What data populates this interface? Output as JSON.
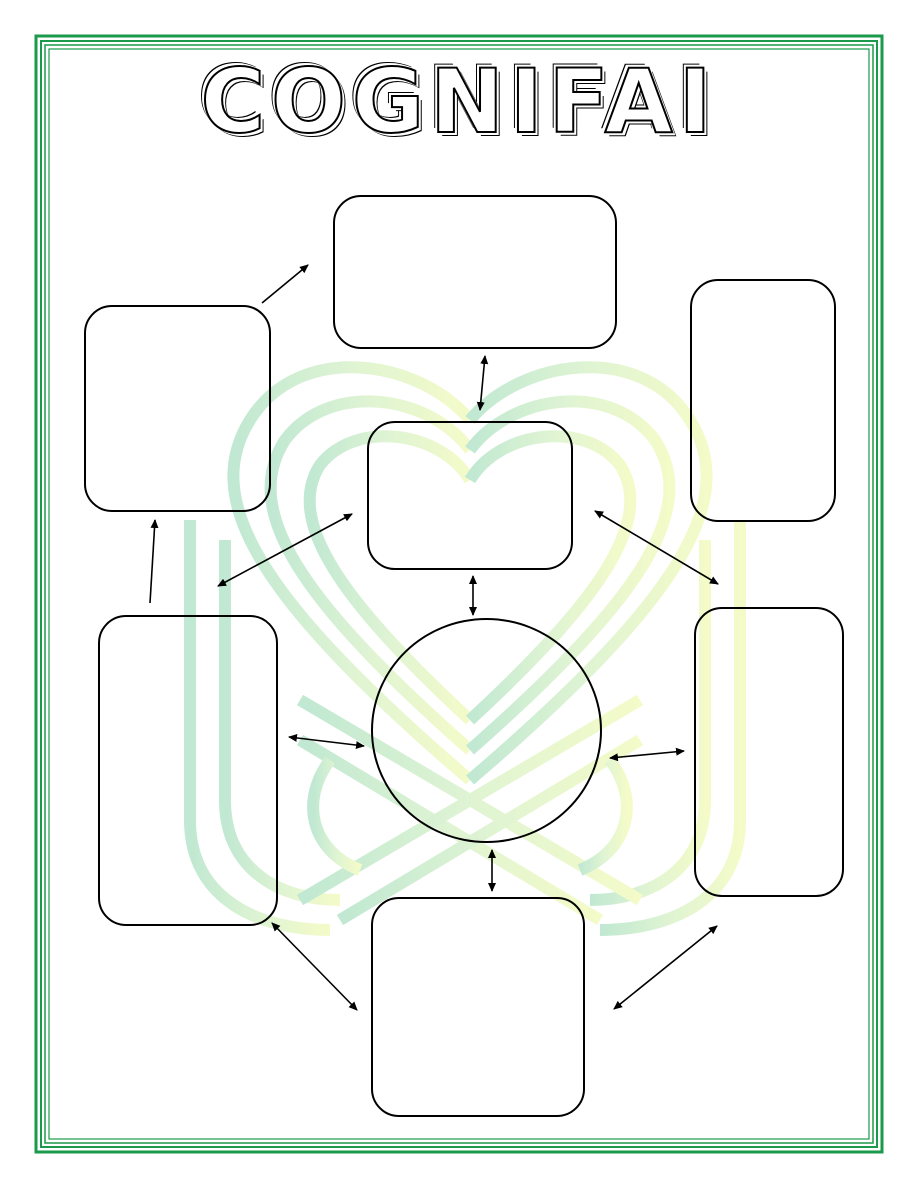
{
  "title": "COGNIFAI",
  "colors": {
    "border_green": "#1a9a4a",
    "watermark_left": "#8ed6ae",
    "watermark_right": "#e6f59a"
  },
  "diagram": {
    "nodes": [
      {
        "id": "top-box",
        "label": ""
      },
      {
        "id": "center-box",
        "label": ""
      },
      {
        "id": "left-upper-box",
        "label": ""
      },
      {
        "id": "right-upper-box",
        "label": ""
      },
      {
        "id": "left-lower-box",
        "label": ""
      },
      {
        "id": "right-lower-box",
        "label": ""
      },
      {
        "id": "bottom-box",
        "label": ""
      },
      {
        "id": "center-circle",
        "label": ""
      }
    ]
  }
}
